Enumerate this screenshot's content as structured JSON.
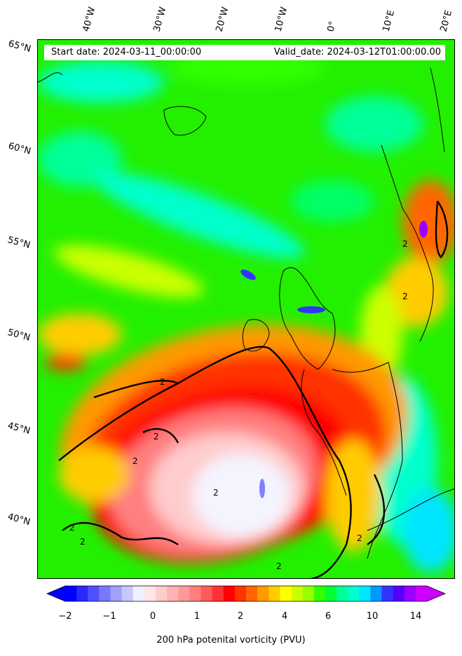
{
  "map": {
    "start_date_label": "Start date: 2024-03-11_00:00:00",
    "valid_date_label": "Valid_date: 2024-03-12T01:00:00.00",
    "lat_labels": [
      "65°N",
      "60°N",
      "55°N",
      "50°N",
      "45°N",
      "40°N"
    ],
    "lon_labels": [
      "40°W",
      "30°W",
      "20°W",
      "10°W",
      "0°",
      "10°E",
      "20°E"
    ],
    "contour_label": "2"
  },
  "colorbar": {
    "label": "200 hPa potenital vorticity (PVU)",
    "tick_labels": [
      "−2",
      "−1",
      "0",
      "1",
      "2",
      "4",
      "6",
      "10",
      "14"
    ],
    "colors": [
      "#0000ff",
      "#2828ff",
      "#5050ff",
      "#7878ff",
      "#a0a0ff",
      "#c8c8ff",
      "#f0f0ff",
      "#ffe6e6",
      "#ffcccc",
      "#ffb3b3",
      "#ff9999",
      "#ff7f7f",
      "#ff5a5a",
      "#ff3333",
      "#ff0000",
      "#ff3300",
      "#ff6600",
      "#ff9900",
      "#ffcc00",
      "#ffff00",
      "#ccff00",
      "#99ff00",
      "#33ff00",
      "#00ff33",
      "#00ff99",
      "#00ffcc",
      "#00e5ff",
      "#0099ff",
      "#3333ff",
      "#5500ff",
      "#9900ff",
      "#cc00ff"
    ]
  }
}
